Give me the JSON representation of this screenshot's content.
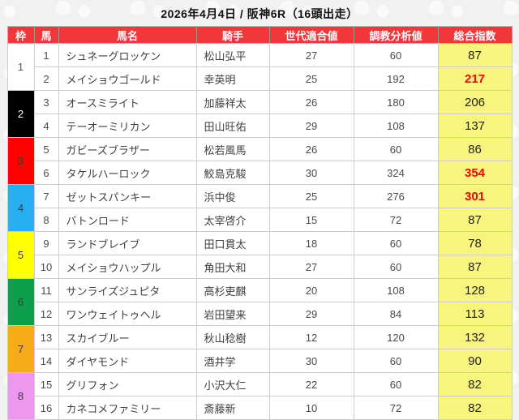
{
  "title": "2026年4月4日 / 阪神6R（16頭出走）",
  "colors": {
    "header_bg": "#f0383b",
    "total_column_bg": "#f8f57e",
    "hot_value_color": "#fe0000",
    "grid_line": "#cccccc"
  },
  "table": {
    "headers": [
      "枠",
      "馬",
      "馬名",
      "騎手",
      "世代適合値",
      "調教分析値",
      "総合指数"
    ],
    "frames": [
      {
        "no": "1",
        "bg": "#ffffff",
        "fg": "#555555"
      },
      {
        "no": "2",
        "bg": "#000000",
        "fg": "#ffffff"
      },
      {
        "no": "3",
        "bg": "#fe0202",
        "fg": "#3a3a3a"
      },
      {
        "no": "4",
        "bg": "#27aff2",
        "fg": "#3a3a3a"
      },
      {
        "no": "5",
        "bg": "#ffff02",
        "fg": "#3a3a3a"
      },
      {
        "no": "6",
        "bg": "#0ba04e",
        "fg": "#3a3a3a"
      },
      {
        "no": "7",
        "bg": "#f6ab18",
        "fg": "#3a3a3a"
      },
      {
        "no": "8",
        "bg": "#ee97ee",
        "fg": "#3a3a3a"
      }
    ],
    "rows": [
      {
        "frame": 1,
        "num": "1",
        "name": "シュネーグロッケン",
        "jockey": "松山弘平",
        "gen": "27",
        "train": "60",
        "total": "87",
        "hot": false
      },
      {
        "frame": 1,
        "num": "2",
        "name": "メイショウゴールド",
        "jockey": "幸英明",
        "gen": "25",
        "train": "192",
        "total": "217",
        "hot": true
      },
      {
        "frame": 2,
        "num": "3",
        "name": "オースミライト",
        "jockey": "加藤祥太",
        "gen": "26",
        "train": "180",
        "total": "206",
        "hot": false
      },
      {
        "frame": 2,
        "num": "4",
        "name": "テーオーミリカン",
        "jockey": "田山旺佑",
        "gen": "29",
        "train": "108",
        "total": "137",
        "hot": false
      },
      {
        "frame": 3,
        "num": "5",
        "name": "ガビーズブラザー",
        "jockey": "松若風馬",
        "gen": "26",
        "train": "60",
        "total": "86",
        "hot": false
      },
      {
        "frame": 3,
        "num": "6",
        "name": "タケルハーロック",
        "jockey": "鮫島克駿",
        "gen": "30",
        "train": "324",
        "total": "354",
        "hot": true
      },
      {
        "frame": 4,
        "num": "7",
        "name": "ゼットスパンキー",
        "jockey": "浜中俊",
        "gen": "25",
        "train": "276",
        "total": "301",
        "hot": true
      },
      {
        "frame": 4,
        "num": "8",
        "name": "バトンロード",
        "jockey": "太宰啓介",
        "gen": "15",
        "train": "72",
        "total": "87",
        "hot": false
      },
      {
        "frame": 5,
        "num": "9",
        "name": "ランドブレイブ",
        "jockey": "田口貫太",
        "gen": "18",
        "train": "60",
        "total": "78",
        "hot": false
      },
      {
        "frame": 5,
        "num": "10",
        "name": "メイショウハップル",
        "jockey": "角田大和",
        "gen": "27",
        "train": "60",
        "total": "87",
        "hot": false
      },
      {
        "frame": 6,
        "num": "11",
        "name": "サンライズジュピタ",
        "jockey": "高杉吏麒",
        "gen": "20",
        "train": "108",
        "total": "128",
        "hot": false
      },
      {
        "frame": 6,
        "num": "12",
        "name": "ワンウェイトゥヘル",
        "jockey": "岩田望来",
        "gen": "29",
        "train": "84",
        "total": "113",
        "hot": false
      },
      {
        "frame": 7,
        "num": "13",
        "name": "スカイブルー",
        "jockey": "秋山稔樹",
        "gen": "12",
        "train": "120",
        "total": "132",
        "hot": false
      },
      {
        "frame": 7,
        "num": "14",
        "name": "ダイヤモンド",
        "jockey": "酒井学",
        "gen": "30",
        "train": "60",
        "total": "90",
        "hot": false
      },
      {
        "frame": 8,
        "num": "15",
        "name": "グリフォン",
        "jockey": "小沢大仁",
        "gen": "22",
        "train": "60",
        "total": "82",
        "hot": false
      },
      {
        "frame": 8,
        "num": "16",
        "name": "カネコメファミリー",
        "jockey": "斎藤新",
        "gen": "10",
        "train": "72",
        "total": "82",
        "hot": false
      }
    ]
  }
}
